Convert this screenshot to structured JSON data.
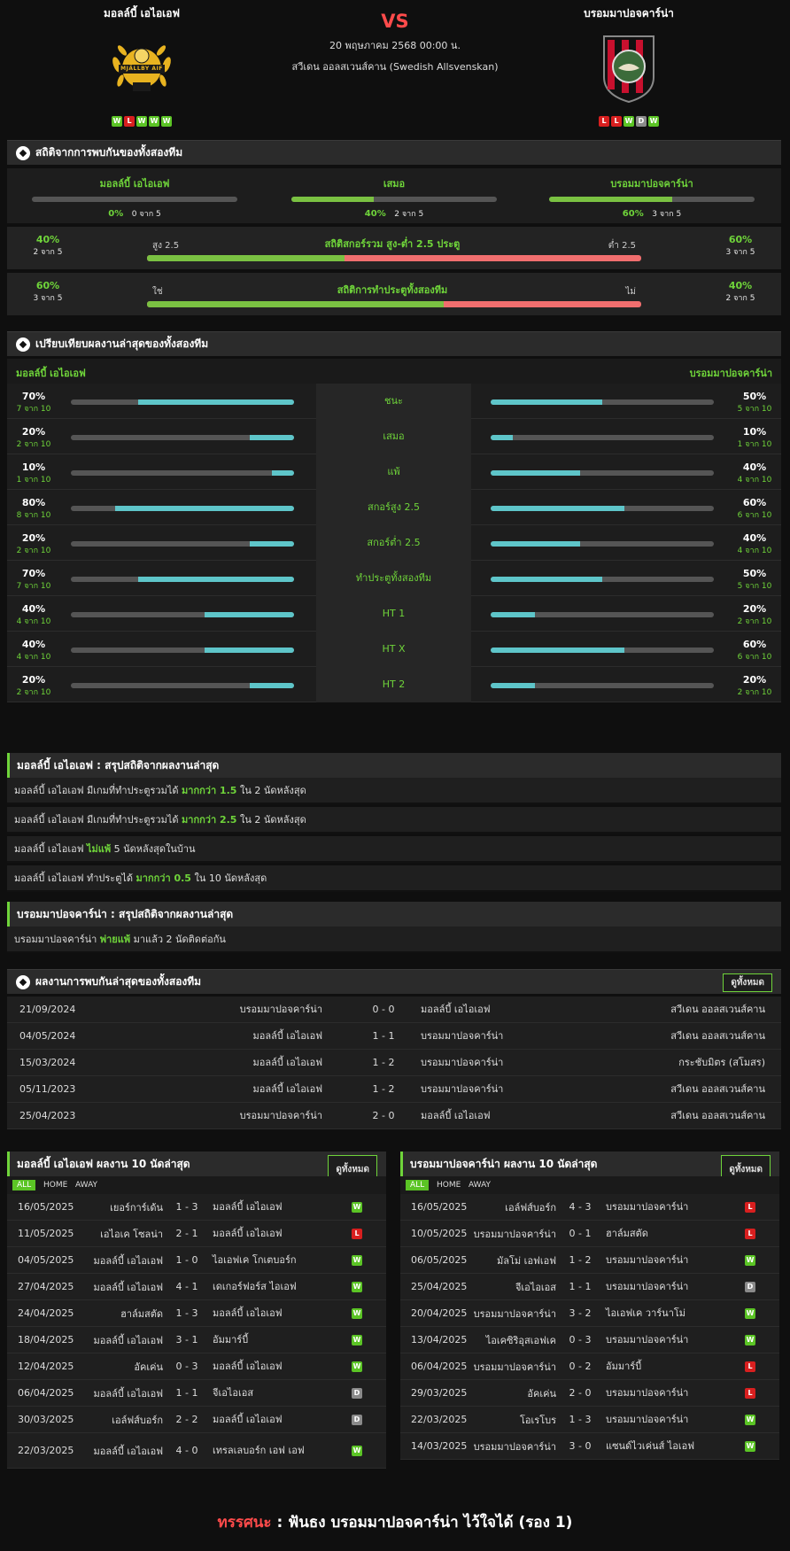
{
  "header": {
    "home": {
      "name": "มอลล์บี้ เอไอเอฟ",
      "form": [
        "W",
        "L",
        "W",
        "W",
        "W"
      ],
      "logo_text": "MJÄLLBY AIF"
    },
    "away": {
      "name": "บรอมมาปอจคาร์น่า",
      "form": [
        "L",
        "L",
        "W",
        "D",
        "W"
      ]
    },
    "vs": "VS",
    "datetime": "20 พฤษภาคม 2568 00:00 น.",
    "league": "สวีเดน ออลสเวนส์คาน (Swedish Allsvenskan)"
  },
  "h2h_stats": {
    "title": "สถิติจากการพบกันของทั้งสองทีม",
    "cols": [
      {
        "label": "มอลล์บี้ เอไอเอฟ",
        "pct": "0%",
        "count": "0 จาก 5",
        "fraction": 0.0
      },
      {
        "label": "เสมอ",
        "pct": "40%",
        "count": "2 จาก 5",
        "fraction": 0.4
      },
      {
        "label": "บรอมมาปอจคาร์น่า",
        "pct": "60%",
        "count": "3 จาก 5",
        "fraction": 0.6
      }
    ],
    "over_under": {
      "title": "สถิติสกอร์รวม สูง-ต่ำ 2.5 ประตู",
      "left_label": "สูง 2.5",
      "right_label": "ต่ำ 2.5",
      "left_pct": "40%",
      "left_count": "2 จาก 5",
      "right_pct": "60%",
      "right_count": "3 จาก 5",
      "fraction": 0.4
    },
    "btts": {
      "title": "สถิติการทำประตูทั้งสองทีม",
      "left_label": "ใช่",
      "right_label": "ไม่",
      "left_pct": "60%",
      "left_count": "3 จาก 5",
      "right_pct": "40%",
      "right_count": "2 จาก 5",
      "fraction": 0.6
    }
  },
  "compare": {
    "title": "เปรียบเทียบผลงานล่าสุดของทั้งสองทีม",
    "home_label": "มอลล์บี้ เอไอเอฟ",
    "away_label": "บรอมมาปอจคาร์น่า",
    "rows": [
      {
        "label": "ชนะ",
        "l_pct": "70%",
        "l_cnt": "7 จาก 10",
        "l": 0.7,
        "r_pct": "50%",
        "r_cnt": "5 จาก 10",
        "r": 0.5
      },
      {
        "label": "เสมอ",
        "l_pct": "20%",
        "l_cnt": "2 จาก 10",
        "l": 0.2,
        "r_pct": "10%",
        "r_cnt": "1 จาก 10",
        "r": 0.1
      },
      {
        "label": "แพ้",
        "l_pct": "10%",
        "l_cnt": "1 จาก 10",
        "l": 0.1,
        "r_pct": "40%",
        "r_cnt": "4 จาก 10",
        "r": 0.4
      },
      {
        "label": "สกอร์สูง 2.5",
        "l_pct": "80%",
        "l_cnt": "8 จาก 10",
        "l": 0.8,
        "r_pct": "60%",
        "r_cnt": "6 จาก 10",
        "r": 0.6
      },
      {
        "label": "สกอร์ต่ำ 2.5",
        "l_pct": "20%",
        "l_cnt": "2 จาก 10",
        "l": 0.2,
        "r_pct": "40%",
        "r_cnt": "4 จาก 10",
        "r": 0.4
      },
      {
        "label": "ทำประตูทั้งสองทีม",
        "l_pct": "70%",
        "l_cnt": "7 จาก 10",
        "l": 0.7,
        "r_pct": "50%",
        "r_cnt": "5 จาก 10",
        "r": 0.5
      },
      {
        "label": "HT 1",
        "l_pct": "40%",
        "l_cnt": "4 จาก 10",
        "l": 0.4,
        "r_pct": "20%",
        "r_cnt": "2 จาก 10",
        "r": 0.2
      },
      {
        "label": "HT X",
        "l_pct": "40%",
        "l_cnt": "4 จาก 10",
        "l": 0.4,
        "r_pct": "60%",
        "r_cnt": "6 จาก 10",
        "r": 0.6
      },
      {
        "label": "HT 2",
        "l_pct": "20%",
        "l_cnt": "2 จาก 10",
        "l": 0.2,
        "r_pct": "20%",
        "r_cnt": "2 จาก 10",
        "r": 0.2
      }
    ]
  },
  "home_summary": {
    "title": "มอลล์บี้ เอไอเอฟ : สรุปสถิติจากผลงานล่าสุด",
    "rows": [
      {
        "a": "มอลล์บี้ เอไอเอฟ  มีเกมที่ทำประตูรวมได้ ",
        "hl": "มากกว่า  1.5",
        "b": " ใน 2 นัดหลังสุด"
      },
      {
        "a": "มอลล์บี้ เอไอเอฟ  มีเกมที่ทำประตูรวมได้ ",
        "hl": "มากกว่า  2.5",
        "b": " ใน 2 นัดหลังสุด"
      },
      {
        "a": "มอลล์บี้ เอไอเอฟ ",
        "hl": "ไม่แพ้",
        "b": "  5  นัดหลังสุดในบ้าน"
      },
      {
        "a": "มอลล์บี้ เอไอเอฟ  ทำประตูได้ ",
        "hl": "มากกว่า  0.5",
        "b": "  ใน 10 นัดหลังสุด"
      }
    ]
  },
  "away_summary": {
    "title": "บรอมมาปอจคาร์น่า : สรุปสถิติจากผลงานล่าสุด",
    "rows": [
      {
        "a": "บรอมมาปอจคาร์น่า ",
        "hl": "พ่ายแพ้",
        "b": "  มาแล้ว 2 นัดติดต่อกัน"
      }
    ]
  },
  "h2h_list": {
    "title": "ผลงานการพบกันล่าสุดของทั้งสองทีม",
    "all_label": "ดูทั้งหมด",
    "rows": [
      {
        "date": "21/09/2024",
        "home": "บรอมมาปอจคาร์น่า",
        "score": "0 - 0",
        "away": "มอลล์บี้ เอไอเอฟ",
        "comp": "สวีเดน ออลสเวนส์คาน"
      },
      {
        "date": "04/05/2024",
        "home": "มอลล์บี้ เอไอเอฟ",
        "score": "1 - 1",
        "away": "บรอมมาปอจคาร์น่า",
        "comp": "สวีเดน ออลสเวนส์คาน"
      },
      {
        "date": "15/03/2024",
        "home": "มอลล์บี้ เอไอเอฟ",
        "score": "1 - 2",
        "away": "บรอมมาปอจคาร์น่า",
        "comp": "กระชับมิตร (สโมสร)"
      },
      {
        "date": "05/11/2023",
        "home": "มอลล์บี้ เอไอเอฟ",
        "score": "1 - 2",
        "away": "บรอมมาปอจคาร์น่า",
        "comp": "สวีเดน ออลสเวนส์คาน"
      },
      {
        "date": "25/04/2023",
        "home": "บรอมมาปอจคาร์น่า",
        "score": "2 - 0",
        "away": "มอลล์บี้ เอไอเอฟ",
        "comp": "สวีเดน ออลสเวนส์คาน"
      }
    ]
  },
  "home_last10": {
    "title": "มอลล์บี้ เอไอเอฟ ผลงาน 10 นัดล่าสุด",
    "all_label": "ดูทั้งหมด",
    "tabs": [
      "ALL",
      "HOME",
      "AWAY"
    ],
    "rows": [
      {
        "date": "16/05/2025",
        "home": "เยอร์การ์เด้น",
        "score": "1 - 3",
        "away": "มอลล์บี้ เอไอเอฟ",
        "res": "W"
      },
      {
        "date": "11/05/2025",
        "home": "เอไอเค โซลน่า",
        "score": "2 - 1",
        "away": "มอลล์บี้ เอไอเอฟ",
        "res": "L"
      },
      {
        "date": "04/05/2025",
        "home": "มอลล์บี้ เอไอเอฟ",
        "score": "1 - 0",
        "away": "ไอเอฟเค โกเตบอร์ก",
        "res": "W"
      },
      {
        "date": "27/04/2025",
        "home": "มอลล์บี้ เอไอเอฟ",
        "score": "4 - 1",
        "away": "เดเกอร์ฟอร์ส ไอเอฟ",
        "res": "W"
      },
      {
        "date": "24/04/2025",
        "home": "ฮาล์มสตัด",
        "score": "1 - 3",
        "away": "มอลล์บี้ เอไอเอฟ",
        "res": "W"
      },
      {
        "date": "18/04/2025",
        "home": "มอลล์บี้ เอไอเอฟ",
        "score": "3 - 1",
        "away": "อัมมาร์บี้",
        "res": "W"
      },
      {
        "date": "12/04/2025",
        "home": "อัคเค่น",
        "score": "0 - 3",
        "away": "มอลล์บี้ เอไอเอฟ",
        "res": "W"
      },
      {
        "date": "06/04/2025",
        "home": "มอลล์บี้ เอไอเอฟ",
        "score": "1 - 1",
        "away": "จีเอไอเอส",
        "res": "D"
      },
      {
        "date": "30/03/2025",
        "home": "เอล์ฟส์บอร์ก",
        "score": "2 - 2",
        "away": "มอลล์บี้ เอไอเอฟ",
        "res": "D"
      },
      {
        "date": "22/03/2025",
        "home": "มอลล์บี้ เอไอเอฟ",
        "score": "4 - 0",
        "away": "เทรลเลบอร์ก เอฟ เอฟ",
        "res": "W"
      }
    ]
  },
  "away_last10": {
    "title": "บรอมมาปอจคาร์น่า ผลงาน 10 นัดล่าสุด",
    "all_label": "ดูทั้งหมด",
    "tabs": [
      "ALL",
      "HOME",
      "AWAY"
    ],
    "rows": [
      {
        "date": "16/05/2025",
        "home": "เอล์ฟส์บอร์ก",
        "score": "4 - 3",
        "away": "บรอมมาปอจคาร์น่า",
        "res": "L"
      },
      {
        "date": "10/05/2025",
        "home": "บรอมมาปอจคาร์น่า",
        "score": "0 - 1",
        "away": "ฮาล์มสตัด",
        "res": "L"
      },
      {
        "date": "06/05/2025",
        "home": "มัลโม่ เอฟเอฟ",
        "score": "1 - 2",
        "away": "บรอมมาปอจคาร์น่า",
        "res": "W"
      },
      {
        "date": "25/04/2025",
        "home": "จีเอไอเอส",
        "score": "1 - 1",
        "away": "บรอมมาปอจคาร์น่า",
        "res": "D"
      },
      {
        "date": "20/04/2025",
        "home": "บรอมมาปอจคาร์น่า",
        "score": "3 - 2",
        "away": "ไอเอฟเค วาร์นาโม่",
        "res": "W"
      },
      {
        "date": "13/04/2025",
        "home": "ไอเคซิริอุสเอฟเค",
        "score": "0 - 3",
        "away": "บรอมมาปอจคาร์น่า",
        "res": "W"
      },
      {
        "date": "06/04/2025",
        "home": "บรอมมาปอจคาร์น่า",
        "score": "0 - 2",
        "away": "อัมมาร์บี้",
        "res": "L"
      },
      {
        "date": "29/03/2025",
        "home": "อัคเค่น",
        "score": "2 - 0",
        "away": "บรอมมาปอจคาร์น่า",
        "res": "L"
      },
      {
        "date": "22/03/2025",
        "home": "โอเรโบร",
        "score": "1 - 3",
        "away": "บรอมมาปอจคาร์น่า",
        "res": "W"
      },
      {
        "date": "14/03/2025",
        "home": "บรอมมาปอจคาร์น่า",
        "score": "3 - 0",
        "away": "แซนด์ไวเค่นส์ ไอเอฟ",
        "res": "W"
      }
    ]
  },
  "verdict": {
    "label": "ทรรศนะ",
    "sep": " :  ",
    "text": "ฟันธง บรอมมาปอจคาร์น่า ไว้ใจได้ (รอง 1)"
  },
  "colors": {
    "accent": "#6fd43a",
    "win": "#5bc425",
    "loss": "#d81f1f",
    "draw": "#8a8a8a",
    "compare_bar": "#5ec5c9",
    "over": "#7ac142",
    "under": "#f06e6e"
  }
}
